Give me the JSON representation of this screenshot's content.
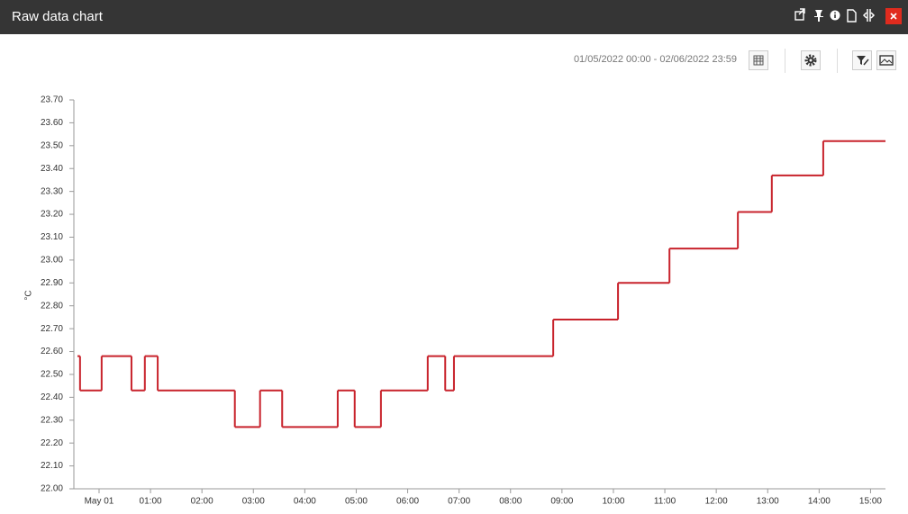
{
  "header": {
    "title": "Raw data chart"
  },
  "toolbar": {
    "date_range": "01/05/2022 00:00 - 02/06/2022 23:59"
  },
  "chart_data": {
    "type": "line",
    "step": "post",
    "ylabel": "°C",
    "color": "#c8232c",
    "x": [
      -0.42,
      -0.37,
      0.05,
      0.63,
      0.89,
      1.14,
      2.64,
      3.13,
      3.56,
      4.64,
      4.97,
      5.48,
      6.39,
      6.73,
      6.9,
      8.83,
      10.09,
      11.09,
      12.42,
      13.08,
      14.08
    ],
    "values": [
      22.58,
      22.43,
      22.58,
      22.43,
      22.58,
      22.43,
      22.27,
      22.43,
      22.27,
      22.43,
      22.27,
      22.43,
      22.58,
      22.43,
      22.58,
      22.74,
      22.9,
      23.05,
      23.21,
      23.37,
      23.52
    ],
    "xlim": [
      -0.49,
      15.29
    ],
    "xticks": [
      {
        "value": 0,
        "label": "May 01"
      },
      {
        "value": 1,
        "label": "01:00"
      },
      {
        "value": 2,
        "label": "02:00"
      },
      {
        "value": 3,
        "label": "03:00"
      },
      {
        "value": 4,
        "label": "04:00"
      },
      {
        "value": 5,
        "label": "05:00"
      },
      {
        "value": 6,
        "label": "06:00"
      },
      {
        "value": 7,
        "label": "07:00"
      },
      {
        "value": 8,
        "label": "08:00"
      },
      {
        "value": 9,
        "label": "09:00"
      },
      {
        "value": 10,
        "label": "10:00"
      },
      {
        "value": 11,
        "label": "11:00"
      },
      {
        "value": 12,
        "label": "12:00"
      },
      {
        "value": 13,
        "label": "13:00"
      },
      {
        "value": 14,
        "label": "14:00"
      },
      {
        "value": 15,
        "label": "15:00"
      }
    ],
    "ylim": [
      22,
      23.7
    ],
    "yticks": [
      {
        "value": 22,
        "label": "22.00"
      },
      {
        "value": 22.1,
        "label": "22.10"
      },
      {
        "value": 22.2,
        "label": "22.20"
      },
      {
        "value": 22.3,
        "label": "22.30"
      },
      {
        "value": 22.4,
        "label": "22.40"
      },
      {
        "value": 22.5,
        "label": "22.50"
      },
      {
        "value": 22.6,
        "label": "22.60"
      },
      {
        "value": 22.7,
        "label": "22.70"
      },
      {
        "value": 22.8,
        "label": "22.80"
      },
      {
        "value": 22.9,
        "label": "22.90"
      },
      {
        "value": 23,
        "label": "23.00"
      },
      {
        "value": 23.1,
        "label": "23.10"
      },
      {
        "value": 23.2,
        "label": "23.20"
      },
      {
        "value": 23.3,
        "label": "23.30"
      },
      {
        "value": 23.4,
        "label": "23.40"
      },
      {
        "value": 23.5,
        "label": "23.50"
      },
      {
        "value": 23.6,
        "label": "23.60"
      },
      {
        "value": 23.7,
        "label": "23.70"
      }
    ],
    "grid": false
  }
}
